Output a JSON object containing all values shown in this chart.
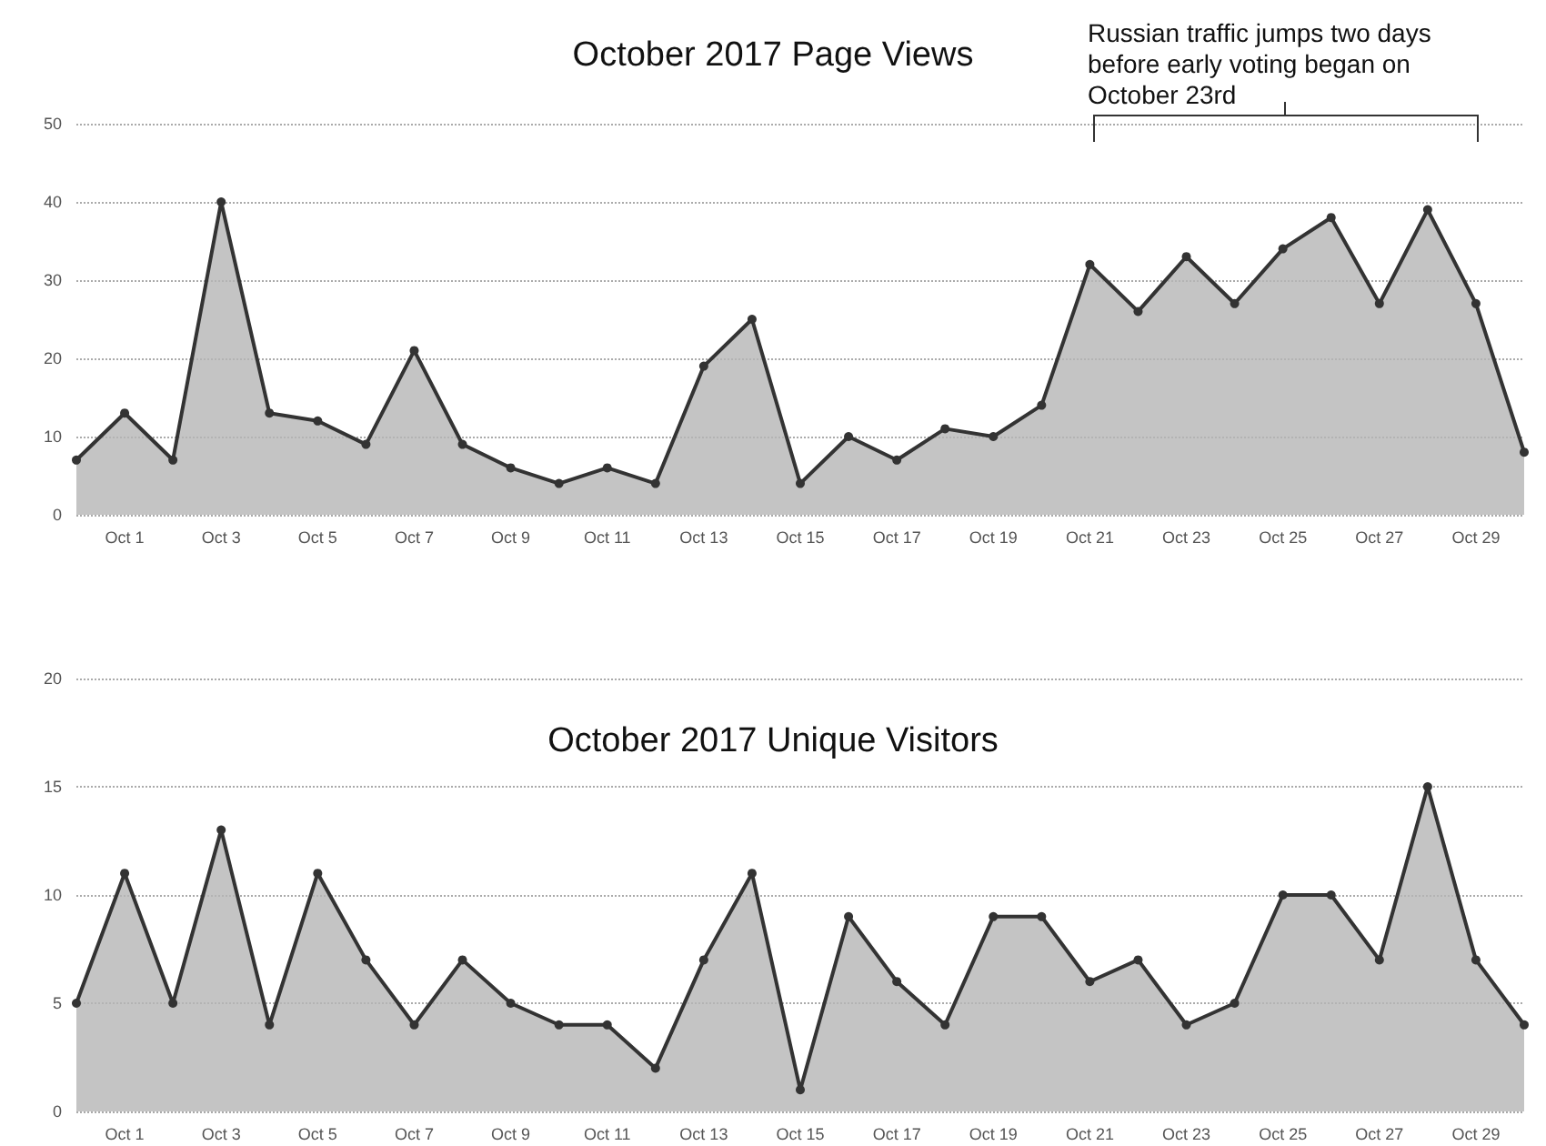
{
  "chart_data": [
    {
      "type": "area",
      "title": "October 2017 Page Views",
      "categories": [
        null,
        "Oct 1",
        null,
        "Oct 3",
        null,
        "Oct 5",
        null,
        "Oct 7",
        null,
        "Oct 9",
        null,
        "Oct 11",
        null,
        "Oct 13",
        null,
        "Oct 15",
        null,
        "Oct 17",
        null,
        "Oct 19",
        null,
        "Oct 21",
        null,
        "Oct 23",
        null,
        "Oct 25",
        null,
        "Oct 27",
        null,
        "Oct 29",
        null
      ],
      "values": [
        7,
        13,
        7,
        40,
        13,
        12,
        9,
        21,
        9,
        6,
        4,
        6,
        4,
        19,
        25,
        4,
        10,
        7,
        11,
        10,
        14,
        32,
        26,
        33,
        27,
        34,
        38,
        27,
        39,
        27,
        8
      ],
      "color": "#333333",
      "ylim": [
        0,
        50
      ],
      "yticks": [
        0,
        10,
        20,
        30,
        40,
        50
      ],
      "grid": "y",
      "marker": "circle",
      "annotations": [
        "Russian traffic jumps two days before early voting began on October 23rd"
      ]
    },
    {
      "type": "area",
      "title": "October 2017 Unique Visitors",
      "categories": [
        null,
        "Oct 1",
        null,
        "Oct 3",
        null,
        "Oct 5",
        null,
        "Oct 7",
        null,
        "Oct 9",
        null,
        "Oct 11",
        null,
        "Oct 13",
        null,
        "Oct 15",
        null,
        "Oct 17",
        null,
        "Oct 19",
        null,
        "Oct 21",
        null,
        "Oct 23",
        null,
        "Oct 25",
        null,
        "Oct 27",
        null,
        "Oct 29",
        null
      ],
      "values": [
        5,
        11,
        5,
        13,
        4,
        11,
        7,
        4,
        7,
        5,
        4,
        4,
        2,
        7,
        11,
        1,
        9,
        6,
        4,
        9,
        9,
        6,
        7,
        4,
        5,
        10,
        10,
        7,
        15,
        7,
        4
      ],
      "color": "#333333",
      "ylim": [
        0,
        20
      ],
      "yticks": [
        0,
        5,
        10,
        15,
        20
      ],
      "grid": "y",
      "marker": "circle"
    }
  ]
}
